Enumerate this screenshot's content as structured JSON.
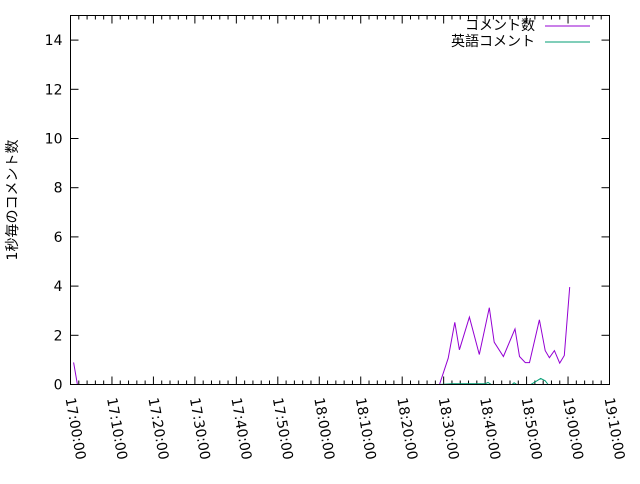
{
  "chart_data": {
    "type": "line",
    "title": "",
    "xlabel": "",
    "ylabel": "1秒毎のコメント数",
    "xlim": [
      "17:00:00",
      "19:10:00"
    ],
    "ylim": [
      0,
      15
    ],
    "x_ticks": [
      "17:00:00",
      "17:10:00",
      "17:20:00",
      "17:30:00",
      "17:40:00",
      "17:50:00",
      "18:00:00",
      "18:10:00",
      "18:20:00",
      "18:30:00",
      "18:40:00",
      "18:50:00",
      "19:00:00",
      "19:10:00"
    ],
    "y_ticks": [
      "0",
      "2",
      "4",
      "6",
      "8",
      "10",
      "12",
      "14"
    ],
    "grid": false,
    "legend_position": "top-right",
    "series": [
      {
        "name": "コメント数",
        "color": "#9400d3",
        "x": [
          "17:00:45",
          "17:01:40",
          "18:29:00",
          "18:31:06",
          "18:32:42",
          "18:33:48",
          "18:36:12",
          "18:38:36",
          "18:41:00",
          "18:42:12",
          "18:44:24",
          "18:47:12",
          "18:48:18",
          "18:49:42",
          "18:50:42",
          "18:53:06",
          "18:54:30",
          "18:55:30",
          "18:56:42",
          "18:58:00",
          "18:59:06",
          "19:00:24"
        ],
        "values": [
          0.9,
          0,
          0,
          1.07,
          2.53,
          1.41,
          2.74,
          1.22,
          3.12,
          1.72,
          1.14,
          2.26,
          1.14,
          0.89,
          0.89,
          2.63,
          1.38,
          1.09,
          1.38,
          0.87,
          1.18,
          3.96
        ]
      },
      {
        "name": "英語コメント",
        "color": "#009e73",
        "x": [
          "18:29:00",
          "18:32:00",
          "18:40:00",
          "18:40:42",
          "18:41:30",
          "18:46:30",
          "18:47:00",
          "18:47:40",
          "18:51:00",
          "18:52:30",
          "18:53:24",
          "18:54:30",
          "18:55:12"
        ],
        "values": [
          0,
          0.03,
          0.03,
          0.08,
          0,
          0,
          0.07,
          0,
          0,
          0.15,
          0.25,
          0.15,
          0
        ]
      }
    ]
  }
}
